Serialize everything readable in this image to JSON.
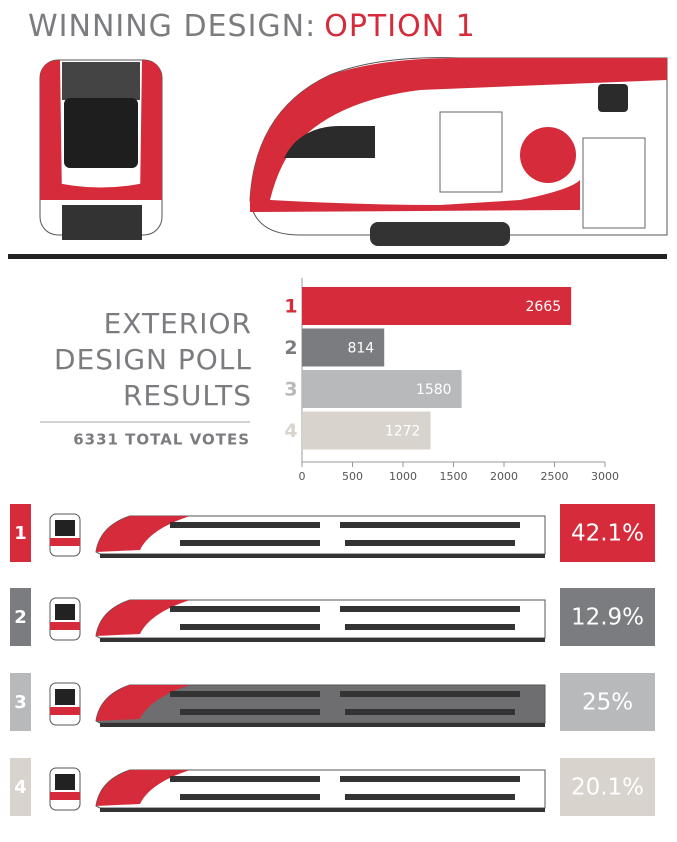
{
  "header": {
    "title": "WINNING DESIGN:",
    "highlight": "OPTION 1"
  },
  "chart_data": {
    "type": "bar",
    "orientation": "horizontal",
    "title": "EXTERIOR DESIGN POLL RESULTS",
    "subtitle": "6331 TOTAL VOTES",
    "categories": [
      "1",
      "2",
      "3",
      "4"
    ],
    "values": [
      2665,
      814,
      1580,
      1272
    ],
    "colors": [
      "#d52b3a",
      "#7b7c7f",
      "#b8b9bb",
      "#d8d3cc"
    ],
    "xlim": [
      0,
      3000
    ],
    "xticks": [
      0,
      500,
      1000,
      1500,
      2000,
      2500,
      3000
    ]
  },
  "shares": {
    "values": [
      42.1,
      12.9,
      25,
      20.1
    ],
    "value_labels": [
      "42.1%",
      "12.9%",
      "25%",
      "20.1%"
    ]
  }
}
